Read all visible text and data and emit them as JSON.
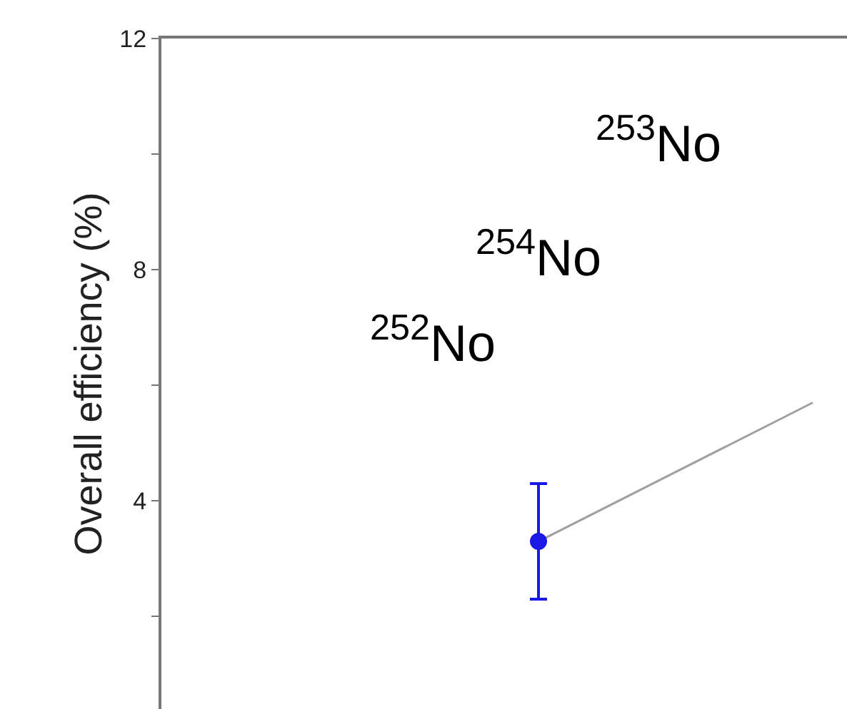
{
  "chart_data": {
    "type": "line",
    "ylabel": "Overall efficiency (%)",
    "categories": [
      null,
      null,
      null,
      null,
      null,
      null,
      null,
      null,
      null,
      null
    ],
    "series": [
      {
        "color": "#a0a0a0",
        "values": [
          null,
          null,
          null,
          null,
          null,
          3.3,
          null,
          null,
          null,
          5.7
        ],
        "marker": "none"
      },
      {
        "type": "scatter",
        "color": "#1a1ae6",
        "values": [
          null,
          null,
          null,
          null,
          null,
          3.3,
          null,
          null,
          null,
          null
        ],
        "errors": [
          null,
          null,
          null,
          null,
          null,
          [
            2.3,
            4.3
          ],
          null,
          null,
          null,
          null
        ],
        "marker": "circle"
      }
    ],
    "ylim": [
      0.4,
      12
    ],
    "yticks": [
      {
        "value": 2,
        "label": null
      },
      4,
      {
        "value": 6,
        "label": null
      },
      8,
      {
        "value": 10,
        "label": null
      },
      12
    ],
    "annotations": [
      "$^{252}$No",
      "$^{254}$No",
      "$^{253}$No"
    ]
  }
}
